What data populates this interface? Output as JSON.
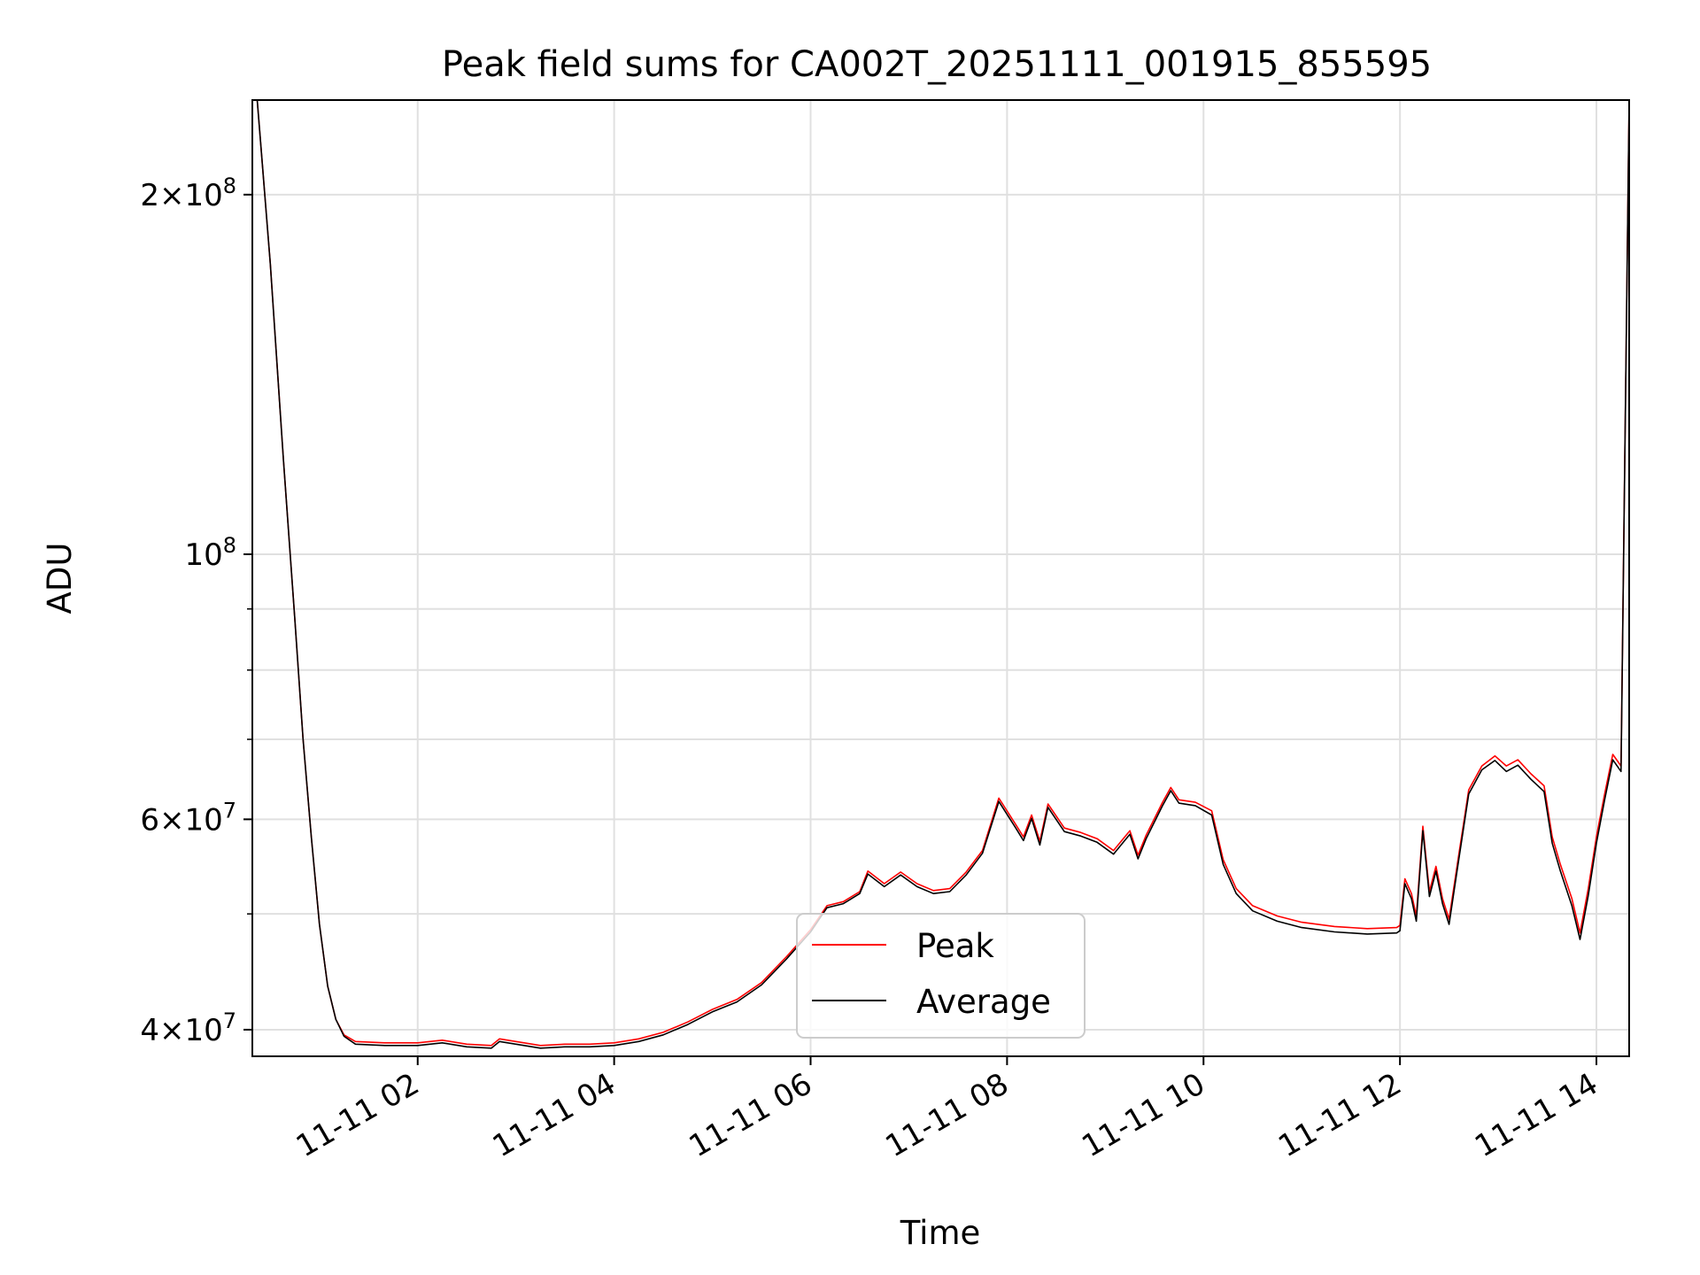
{
  "chart_data": {
    "type": "line",
    "title": "Peak field sums for CA002T_20251111_001915_855595",
    "xlabel": "Time",
    "ylabel": "ADU",
    "y_scale": "log",
    "ylim": [
      38000000,
      240000000
    ],
    "xlim": [
      "2025-11-11 00:19",
      "2025-11-11 14:20"
    ],
    "grid": true,
    "legend_position": "lower center",
    "x_ticks": [
      {
        "x": "2025-11-11 02:00",
        "label": "11-11 02"
      },
      {
        "x": "2025-11-11 04:00",
        "label": "11-11 04"
      },
      {
        "x": "2025-11-11 06:00",
        "label": "11-11 06"
      },
      {
        "x": "2025-11-11 08:00",
        "label": "11-11 08"
      },
      {
        "x": "2025-11-11 10:00",
        "label": "11-11 10"
      },
      {
        "x": "2025-11-11 12:00",
        "label": "11-11 12"
      },
      {
        "x": "2025-11-11 14:00",
        "label": "11-11 14"
      }
    ],
    "y_ticks": [
      {
        "value": 40000000,
        "base": "4",
        "exp": "7"
      },
      {
        "value": 60000000,
        "base": "6",
        "exp": "7"
      },
      {
        "value": 100000000,
        "base": "",
        "exp": "8"
      },
      {
        "value": 200000000,
        "base": "2",
        "exp": "8"
      }
    ],
    "y_minor_ticks": [
      50000000,
      70000000,
      80000000,
      90000000
    ],
    "series": [
      {
        "name": "Peak",
        "color": "#ff0000",
        "points": [
          [
            "2025-11-11 00:22",
            240000000
          ],
          [
            "2025-11-11 00:30",
            175000000
          ],
          [
            "2025-11-11 00:38",
            120000000
          ],
          [
            "2025-11-11 00:45",
            88000000
          ],
          [
            "2025-11-11 00:50",
            70000000
          ],
          [
            "2025-11-11 00:55",
            58000000
          ],
          [
            "2025-11-11 01:00",
            49000000
          ],
          [
            "2025-11-11 01:05",
            43500000
          ],
          [
            "2025-11-11 01:10",
            40800000
          ],
          [
            "2025-11-11 01:15",
            39600000
          ],
          [
            "2025-11-11 01:22",
            39100000
          ],
          [
            "2025-11-11 01:40",
            39000000
          ],
          [
            "2025-11-11 02:00",
            39000000
          ],
          [
            "2025-11-11 02:15",
            39200000
          ],
          [
            "2025-11-11 02:30",
            38900000
          ],
          [
            "2025-11-11 02:45",
            38800000
          ],
          [
            "2025-11-11 02:50",
            39300000
          ],
          [
            "2025-11-11 03:00",
            39100000
          ],
          [
            "2025-11-11 03:15",
            38800000
          ],
          [
            "2025-11-11 03:30",
            38900000
          ],
          [
            "2025-11-11 03:45",
            38900000
          ],
          [
            "2025-11-11 04:00",
            39000000
          ],
          [
            "2025-11-11 04:15",
            39300000
          ],
          [
            "2025-11-11 04:30",
            39800000
          ],
          [
            "2025-11-11 04:45",
            40600000
          ],
          [
            "2025-11-11 05:00",
            41600000
          ],
          [
            "2025-11-11 05:15",
            42400000
          ],
          [
            "2025-11-11 05:30",
            43800000
          ],
          [
            "2025-11-11 05:45",
            46000000
          ],
          [
            "2025-11-11 06:00",
            48500000
          ],
          [
            "2025-11-11 06:10",
            50800000
          ],
          [
            "2025-11-11 06:20",
            51200000
          ],
          [
            "2025-11-11 06:30",
            52200000
          ],
          [
            "2025-11-11 06:35",
            54300000
          ],
          [
            "2025-11-11 06:45",
            53000000
          ],
          [
            "2025-11-11 06:55",
            54200000
          ],
          [
            "2025-11-11 07:05",
            53000000
          ],
          [
            "2025-11-11 07:15",
            52300000
          ],
          [
            "2025-11-11 07:25",
            52500000
          ],
          [
            "2025-11-11 07:35",
            54200000
          ],
          [
            "2025-11-11 07:45",
            56500000
          ],
          [
            "2025-11-11 07:55",
            62500000
          ],
          [
            "2025-11-11 08:05",
            59500000
          ],
          [
            "2025-11-11 08:10",
            58000000
          ],
          [
            "2025-11-11 08:15",
            60500000
          ],
          [
            "2025-11-11 08:20",
            57500000
          ],
          [
            "2025-11-11 08:25",
            61800000
          ],
          [
            "2025-11-11 08:35",
            59000000
          ],
          [
            "2025-11-11 08:45",
            58500000
          ],
          [
            "2025-11-11 08:55",
            57800000
          ],
          [
            "2025-11-11 09:05",
            56500000
          ],
          [
            "2025-11-11 09:15",
            58700000
          ],
          [
            "2025-11-11 09:20",
            56000000
          ],
          [
            "2025-11-11 09:25",
            58200000
          ],
          [
            "2025-11-11 09:35",
            62000000
          ],
          [
            "2025-11-11 09:40",
            63800000
          ],
          [
            "2025-11-11 09:45",
            62300000
          ],
          [
            "2025-11-11 09:55",
            62000000
          ],
          [
            "2025-11-11 10:05",
            61000000
          ],
          [
            "2025-11-11 10:12",
            55500000
          ],
          [
            "2025-11-11 10:20",
            52500000
          ],
          [
            "2025-11-11 10:30",
            50800000
          ],
          [
            "2025-11-11 10:45",
            49800000
          ],
          [
            "2025-11-11 11:00",
            49200000
          ],
          [
            "2025-11-11 11:20",
            48800000
          ],
          [
            "2025-11-11 11:40",
            48600000
          ],
          [
            "2025-11-11 11:58",
            48700000
          ],
          [
            "2025-11-11 12:00",
            48900000
          ],
          [
            "2025-11-11 12:03",
            53500000
          ],
          [
            "2025-11-11 12:07",
            52000000
          ],
          [
            "2025-11-11 12:10",
            49800000
          ],
          [
            "2025-11-11 12:14",
            59200000
          ],
          [
            "2025-11-11 12:18",
            52200000
          ],
          [
            "2025-11-11 12:22",
            54800000
          ],
          [
            "2025-11-11 12:26",
            51500000
          ],
          [
            "2025-11-11 12:30",
            49500000
          ],
          [
            "2025-11-11 12:35",
            55000000
          ],
          [
            "2025-11-11 12:42",
            63500000
          ],
          [
            "2025-11-11 12:50",
            66500000
          ],
          [
            "2025-11-11 12:58",
            67800000
          ],
          [
            "2025-11-11 13:05",
            66500000
          ],
          [
            "2025-11-11 13:12",
            67300000
          ],
          [
            "2025-11-11 13:20",
            65500000
          ],
          [
            "2025-11-11 13:28",
            64000000
          ],
          [
            "2025-11-11 13:33",
            58000000
          ],
          [
            "2025-11-11 13:38",
            55000000
          ],
          [
            "2025-11-11 13:45",
            51500000
          ],
          [
            "2025-11-11 13:50",
            48200000
          ],
          [
            "2025-11-11 13:55",
            52500000
          ],
          [
            "2025-11-11 14:00",
            58000000
          ],
          [
            "2025-11-11 14:05",
            63000000
          ],
          [
            "2025-11-11 14:10",
            68000000
          ],
          [
            "2025-11-11 14:15",
            66500000
          ],
          [
            "2025-11-11 14:20",
            240000000
          ]
        ]
      },
      {
        "name": "Average",
        "color": "#000000",
        "points": [
          [
            "2025-11-11 00:22",
            240000000
          ],
          [
            "2025-11-11 00:30",
            175000000
          ],
          [
            "2025-11-11 00:38",
            120000000
          ],
          [
            "2025-11-11 00:45",
            88000000
          ],
          [
            "2025-11-11 00:50",
            70000000
          ],
          [
            "2025-11-11 00:55",
            58000000
          ],
          [
            "2025-11-11 01:00",
            49000000
          ],
          [
            "2025-11-11 01:05",
            43500000
          ],
          [
            "2025-11-11 01:10",
            40800000
          ],
          [
            "2025-11-11 01:15",
            39500000
          ],
          [
            "2025-11-11 01:22",
            38900000
          ],
          [
            "2025-11-11 01:40",
            38800000
          ],
          [
            "2025-11-11 02:00",
            38800000
          ],
          [
            "2025-11-11 02:15",
            39000000
          ],
          [
            "2025-11-11 02:30",
            38700000
          ],
          [
            "2025-11-11 02:45",
            38600000
          ],
          [
            "2025-11-11 02:50",
            39100000
          ],
          [
            "2025-11-11 03:00",
            38900000
          ],
          [
            "2025-11-11 03:15",
            38600000
          ],
          [
            "2025-11-11 03:30",
            38700000
          ],
          [
            "2025-11-11 03:45",
            38700000
          ],
          [
            "2025-11-11 04:00",
            38800000
          ],
          [
            "2025-11-11 04:15",
            39100000
          ],
          [
            "2025-11-11 04:30",
            39600000
          ],
          [
            "2025-11-11 04:45",
            40400000
          ],
          [
            "2025-11-11 05:00",
            41400000
          ],
          [
            "2025-11-11 05:15",
            42200000
          ],
          [
            "2025-11-11 05:30",
            43600000
          ],
          [
            "2025-11-11 05:45",
            45800000
          ],
          [
            "2025-11-11 06:00",
            48300000
          ],
          [
            "2025-11-11 06:10",
            50600000
          ],
          [
            "2025-11-11 06:20",
            51000000
          ],
          [
            "2025-11-11 06:30",
            52000000
          ],
          [
            "2025-11-11 06:35",
            54000000
          ],
          [
            "2025-11-11 06:45",
            52700000
          ],
          [
            "2025-11-11 06:55",
            53900000
          ],
          [
            "2025-11-11 07:05",
            52700000
          ],
          [
            "2025-11-11 07:15",
            52000000
          ],
          [
            "2025-11-11 07:25",
            52200000
          ],
          [
            "2025-11-11 07:35",
            53900000
          ],
          [
            "2025-11-11 07:45",
            56200000
          ],
          [
            "2025-11-11 07:55",
            62100000
          ],
          [
            "2025-11-11 08:05",
            59100000
          ],
          [
            "2025-11-11 08:10",
            57600000
          ],
          [
            "2025-11-11 08:15",
            60100000
          ],
          [
            "2025-11-11 08:20",
            57100000
          ],
          [
            "2025-11-11 08:25",
            61400000
          ],
          [
            "2025-11-11 08:35",
            58600000
          ],
          [
            "2025-11-11 08:45",
            58100000
          ],
          [
            "2025-11-11 08:55",
            57400000
          ],
          [
            "2025-11-11 09:05",
            56100000
          ],
          [
            "2025-11-11 09:15",
            58300000
          ],
          [
            "2025-11-11 09:20",
            55600000
          ],
          [
            "2025-11-11 09:25",
            57800000
          ],
          [
            "2025-11-11 09:35",
            61600000
          ],
          [
            "2025-11-11 09:40",
            63400000
          ],
          [
            "2025-11-11 09:45",
            61900000
          ],
          [
            "2025-11-11 09:55",
            61600000
          ],
          [
            "2025-11-11 10:05",
            60500000
          ],
          [
            "2025-11-11 10:12",
            55000000
          ],
          [
            "2025-11-11 10:20",
            52000000
          ],
          [
            "2025-11-11 10:30",
            50300000
          ],
          [
            "2025-11-11 10:45",
            49300000
          ],
          [
            "2025-11-11 11:00",
            48700000
          ],
          [
            "2025-11-11 11:20",
            48300000
          ],
          [
            "2025-11-11 11:40",
            48100000
          ],
          [
            "2025-11-11 11:58",
            48200000
          ],
          [
            "2025-11-11 12:00",
            48400000
          ],
          [
            "2025-11-11 12:03",
            53000000
          ],
          [
            "2025-11-11 12:07",
            51500000
          ],
          [
            "2025-11-11 12:10",
            49300000
          ],
          [
            "2025-11-11 12:14",
            58700000
          ],
          [
            "2025-11-11 12:18",
            51700000
          ],
          [
            "2025-11-11 12:22",
            54300000
          ],
          [
            "2025-11-11 12:26",
            51000000
          ],
          [
            "2025-11-11 12:30",
            49000000
          ],
          [
            "2025-11-11 12:35",
            54500000
          ],
          [
            "2025-11-11 12:42",
            63000000
          ],
          [
            "2025-11-11 12:50",
            66000000
          ],
          [
            "2025-11-11 12:58",
            67200000
          ],
          [
            "2025-11-11 13:05",
            65800000
          ],
          [
            "2025-11-11 13:12",
            66600000
          ],
          [
            "2025-11-11 13:20",
            64800000
          ],
          [
            "2025-11-11 13:28",
            63300000
          ],
          [
            "2025-11-11 13:33",
            57300000
          ],
          [
            "2025-11-11 13:38",
            54300000
          ],
          [
            "2025-11-11 13:45",
            50800000
          ],
          [
            "2025-11-11 13:50",
            47600000
          ],
          [
            "2025-11-11 13:55",
            51800000
          ],
          [
            "2025-11-11 14:00",
            57300000
          ],
          [
            "2025-11-11 14:05",
            62300000
          ],
          [
            "2025-11-11 14:10",
            67300000
          ],
          [
            "2025-11-11 14:15",
            65800000
          ],
          [
            "2025-11-11 14:20",
            240000000
          ]
        ]
      }
    ]
  }
}
